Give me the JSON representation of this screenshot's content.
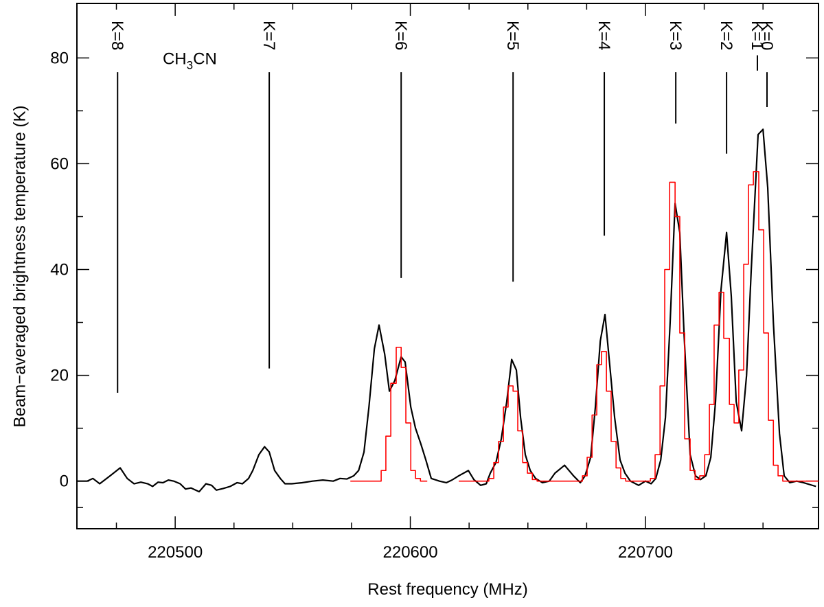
{
  "chart_data": {
    "type": "line",
    "x_label": "Rest frequency (MHz)",
    "y_label": "Beam−averaged brightness temperature (K)",
    "xlim": [
      220458.2,
      220773.6
    ],
    "ylim": [
      -9,
      90.3
    ],
    "xticks": [
      220500,
      220600,
      220700
    ],
    "xminor_ticks": [
      220475,
      220525,
      220550,
      220575,
      220625,
      220650,
      220675,
      220725,
      220750
    ],
    "yticks": [
      0,
      20,
      40,
      60,
      80
    ],
    "yminor_ticks": [
      -5,
      10,
      30,
      50,
      70
    ],
    "series": [
      {
        "color": "#000000",
        "drawstyle": "default",
        "x": [
          220458.3,
          220462.6,
          220465.0,
          220467.9,
          220472.3,
          220476.6,
          220479.6,
          220482.5,
          220485.4,
          220488.3,
          220490.4,
          220492.7,
          220494.8,
          220497.1,
          220499.4,
          220502.1,
          220504.4,
          220506.7,
          220510.2,
          220513.1,
          220515.5,
          220517.5,
          220520.4,
          220523.4,
          220526.3,
          220528.6,
          220531.2,
          220533.0,
          220535.6,
          220538.0,
          220540.0,
          220542.3,
          220544.7,
          220546.7,
          220549.6,
          220554.0,
          220558.4,
          220562.8,
          220567.2,
          220570.1,
          220573.0,
          220575.9,
          220578.0,
          220580.3,
          220582.4,
          220584.7,
          220586.7,
          220589.1,
          220591.1,
          220593.4,
          220596.1,
          220597.8,
          220600.2,
          220602.2,
          220604.5,
          220606.6,
          220608.9,
          220612.4,
          220615.3,
          220617.7,
          220620.6,
          220624.7,
          220627.0,
          220629.9,
          220632.3,
          220634.0,
          220636.4,
          220638.7,
          220641.0,
          220643.1,
          220645.1,
          220646.9,
          220648.9,
          220651.0,
          220653.3,
          220656.2,
          220659.1,
          220661.5,
          220665.6,
          220669.4,
          220672.3,
          220674.3,
          220676.7,
          220678.7,
          220680.8,
          220682.8,
          220684.8,
          220686.9,
          220689.2,
          220691.3,
          220693.6,
          220697.1,
          220700.0,
          220702.4,
          220704.4,
          220706.5,
          220708.5,
          220710.5,
          220712.6,
          220714.6,
          220716.4,
          220719.0,
          220721.3,
          220723.4,
          220725.7,
          220727.8,
          220729.8,
          220732.1,
          220734.5,
          220736.5,
          220738.6,
          220740.9,
          220743.0,
          220745.0,
          220747.9,
          220750.0,
          220752.0,
          220754.4,
          220757.0,
          220759.0,
          220761.4,
          220764.3,
          220767.2,
          220772.5
        ],
        "values": [
          0,
          0,
          0.5,
          -0.5,
          1,
          2.5,
          0.5,
          -0.5,
          -0.2,
          -0.5,
          -1,
          -0.2,
          -0.3,
          0.2,
          0,
          -0.5,
          -1.5,
          -1.3,
          -2,
          -0.5,
          -0.8,
          -1.7,
          -1.4,
          -1,
          -0.3,
          -0.5,
          0.5,
          2,
          5,
          6.5,
          5.5,
          2,
          0.5,
          -0.5,
          -0.5,
          -0.3,
          0,
          0.2,
          0,
          0.5,
          0.4,
          1,
          2,
          5.5,
          14,
          25,
          29.5,
          24,
          17,
          19,
          23.5,
          22.5,
          14,
          10,
          7,
          4,
          0.5,
          0,
          -0.3,
          0.2,
          1,
          2,
          0.3,
          -0.8,
          -0.5,
          1.5,
          3.5,
          8,
          15,
          23,
          21,
          12,
          5,
          2,
          0.5,
          -0.3,
          0,
          1.5,
          3,
          1,
          -0.3,
          1,
          4.5,
          14,
          26.5,
          31.5,
          22,
          12,
          4,
          1.5,
          0,
          -0.8,
          0,
          -0.5,
          0.5,
          4,
          12,
          30,
          52.5,
          47,
          28,
          5,
          1,
          0.3,
          1,
          4.5,
          15,
          36,
          47,
          35,
          15,
          9.5,
          20,
          40,
          65.5,
          66.5,
          55.5,
          30,
          9,
          1,
          -0.3,
          0,
          -0.3,
          -1
        ]
      },
      {
        "color": "#ff0000",
        "drawstyle": "steps-post",
        "x": [
          220574.5,
          220587.6,
          220589.6,
          220591.7,
          220594.0,
          220596.1,
          220598.1,
          220600.2,
          220602.2,
          220604.3,
          220607.2,
          220610.0,
          220620.6,
          220633.4,
          220635.5,
          220637.5,
          220639.6,
          220641.6,
          220643.7,
          220645.7,
          220647.8,
          220649.8,
          220651.9,
          220653.9,
          220673.2,
          220675.2,
          220677.3,
          220679.3,
          220681.3,
          220683.4,
          220685.4,
          220687.5,
          220689.5,
          220691.6,
          220702.1,
          220704.1,
          220706.2,
          220708.2,
          220710.3,
          220712.6,
          220714.6,
          220716.7,
          220719.0,
          220721.1,
          220723.1,
          220725.2,
          220727.2,
          220729.2,
          220731.3,
          220733.3,
          220735.7,
          220737.7,
          220739.7,
          220741.8,
          220743.8,
          220745.9,
          220748.2,
          220750.3,
          220752.3,
          220754.4,
          220756.4,
          220758.4,
          220773.6
        ],
        "values": [
          0,
          2,
          8.5,
          18.5,
          25.3,
          21.5,
          11,
          2,
          0.5,
          0,
          0,
          null,
          0,
          0.5,
          3.5,
          7.5,
          14,
          18,
          17,
          9.5,
          3.5,
          1.5,
          0.3,
          0,
          1,
          4.5,
          12.5,
          22,
          24.5,
          17,
          7.5,
          2.5,
          0.5,
          0,
          0.5,
          5,
          18,
          40,
          56.5,
          50,
          28,
          8,
          2,
          0.3,
          1,
          5,
          14.5,
          29.5,
          35.7,
          27,
          14.5,
          11,
          21,
          41,
          56,
          58.5,
          47.5,
          28,
          11.5,
          3,
          1,
          0,
          0
        ]
      }
    ],
    "markers": [
      {
        "label": "K=8",
        "x": 220475.5,
        "y": [
          77.3,
          16.7
        ]
      },
      {
        "label": "K=7",
        "x": 220540.0,
        "y": [
          77.3,
          21.3
        ]
      },
      {
        "label": "K=6",
        "x": 220596.1,
        "y": [
          77.3,
          38.4
        ]
      },
      {
        "label": "K=5",
        "x": 220643.7,
        "y": [
          77.3,
          37.7
        ]
      },
      {
        "label": "K=4",
        "x": 220682.5,
        "y": [
          77.3,
          46.4
        ]
      },
      {
        "label": "K=3",
        "x": 220712.9,
        "y": [
          77.3,
          67.6
        ]
      },
      {
        "label": "K=2",
        "x": 220734.5,
        "y": [
          77.3,
          61.9
        ]
      },
      {
        "label": "K=1",
        "x": 220747.6,
        "y": [
          80.5,
          77.6
        ]
      },
      {
        "label": "K=0",
        "x": 220751.7,
        "y": [
          77.3,
          70.7
        ]
      }
    ],
    "annotation": {
      "parts": [
        "CH",
        "3",
        "CN"
      ],
      "x": 220494.7,
      "y": 80
    }
  }
}
